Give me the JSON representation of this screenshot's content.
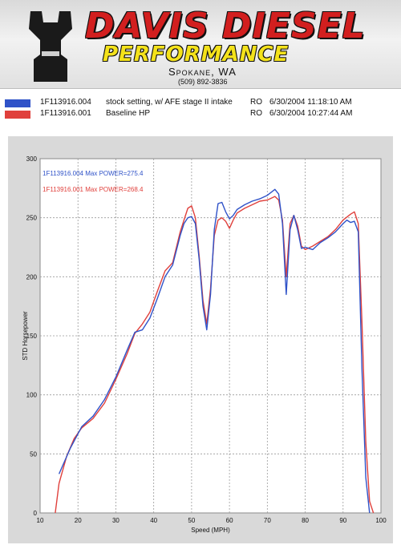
{
  "header": {
    "brand_name": "DAVIS DIESEL",
    "brand_sub": "PERFORMANCE",
    "city": "Spokane, WA",
    "phone": "(509) 892-3836"
  },
  "runs": [
    {
      "file": "1F113916.004",
      "description": "stock setting, w/ AFE stage II intake",
      "operator": "RO",
      "date": "6/30/2004 11:18:10 AM",
      "color": "#2f52c8"
    },
    {
      "file": "1F113916.001",
      "description": "Baseline HP",
      "operator": "RO",
      "date": "6/30/2004 10:27:44 AM",
      "color": "#e0403c"
    }
  ],
  "chart_data": {
    "type": "line",
    "xlabel": "Speed (MPH)",
    "ylabel": "STD Horsepower",
    "xlim": [
      10,
      100
    ],
    "ylim": [
      0,
      300
    ],
    "xticks": [
      "10",
      "20",
      "30",
      "40",
      "50",
      "60",
      "70",
      "80",
      "90",
      "100"
    ],
    "yticks": [
      "0",
      "50",
      "100",
      "150",
      "200",
      "250",
      "300"
    ],
    "grid": true,
    "legend_placement": "top-left",
    "series": [
      {
        "name": "1F113916.004  Max POWER=275.4",
        "color": "#2f52c8",
        "x": [
          15,
          18,
          21,
          24,
          27,
          30,
          33,
          35,
          37,
          39,
          41,
          43,
          45,
          47,
          48,
          49,
          50,
          51,
          52,
          53,
          54,
          55,
          56,
          57,
          58,
          59,
          60,
          61,
          62,
          64,
          66,
          68,
          70,
          72,
          73,
          74,
          75,
          76,
          77,
          78,
          79,
          80,
          82,
          84,
          86,
          88,
          90,
          91,
          92,
          93,
          94,
          95,
          96,
          97
        ],
        "y": [
          33,
          55,
          73,
          82,
          96,
          115,
          138,
          153,
          155,
          165,
          182,
          200,
          210,
          235,
          245,
          250,
          251,
          245,
          215,
          175,
          155,
          185,
          240,
          262,
          263,
          255,
          249,
          252,
          257,
          261,
          264,
          266,
          269,
          274,
          270,
          245,
          185,
          240,
          252,
          240,
          224,
          225,
          223,
          229,
          233,
          238,
          245,
          248,
          246,
          247,
          238,
          120,
          30,
          0
        ]
      },
      {
        "name": "1F113916.001  Max POWER=268.4",
        "color": "#e0403c",
        "x": [
          14,
          15,
          17,
          19,
          21,
          24,
          27,
          30,
          33,
          35,
          37,
          39,
          41,
          43,
          45,
          47,
          48,
          49,
          50,
          51,
          52,
          53,
          54,
          55,
          56,
          57,
          58,
          59,
          60,
          61,
          62,
          64,
          66,
          68,
          70,
          72,
          73,
          74,
          75,
          76,
          77,
          78,
          79,
          80,
          82,
          84,
          86,
          88,
          90,
          92,
          93,
          94,
          95,
          96,
          97,
          98
        ],
        "y": [
          0,
          25,
          48,
          63,
          72,
          80,
          93,
          113,
          135,
          152,
          160,
          170,
          188,
          205,
          212,
          238,
          248,
          258,
          260,
          250,
          218,
          180,
          160,
          190,
          235,
          248,
          250,
          247,
          241,
          248,
          254,
          258,
          261,
          264,
          265,
          268,
          265,
          248,
          200,
          245,
          252,
          243,
          226,
          223,
          226,
          230,
          234,
          240,
          248,
          253,
          255,
          245,
          160,
          60,
          10,
          0
        ]
      }
    ]
  }
}
